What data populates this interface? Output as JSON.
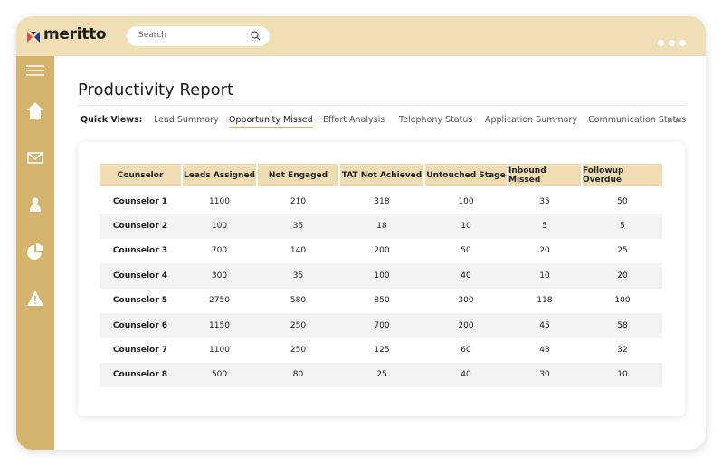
{
  "brand": "meritto",
  "search": {
    "placeholder": "Search"
  },
  "page": {
    "title": "Productivity Report",
    "quick_views": {
      "label": "Quick Views:",
      "tabs": [
        "Lead Summary",
        "Opportunity Missed",
        "Effort Analysis",
        "Telephony Status",
        "Application Summary",
        "Communication Status"
      ],
      "active": 1
    }
  },
  "table": {
    "headers": [
      "Counselor",
      "Leads Assigned",
      "Not Engaged",
      "TAT Not Achieved",
      "Untouched Stage",
      "Inbound Missed",
      "Followup Overdue"
    ],
    "rows": [
      [
        "Counselor 1",
        1100,
        210,
        318,
        100,
        35,
        50
      ],
      [
        "Counselor 2",
        100,
        35,
        18,
        10,
        5,
        5
      ],
      [
        "Counselor 3",
        700,
        140,
        200,
        50,
        20,
        25
      ],
      [
        "Counselor 4",
        300,
        35,
        100,
        40,
        10,
        20
      ],
      [
        "Counselor 5",
        2750,
        580,
        850,
        300,
        118,
        100
      ],
      [
        "Counselor 6",
        1150,
        250,
        700,
        200,
        45,
        58
      ],
      [
        "Counselor 7",
        1100,
        250,
        125,
        60,
        43,
        32
      ],
      [
        "Counselor 8",
        500,
        80,
        25,
        40,
        30,
        10
      ]
    ]
  }
}
